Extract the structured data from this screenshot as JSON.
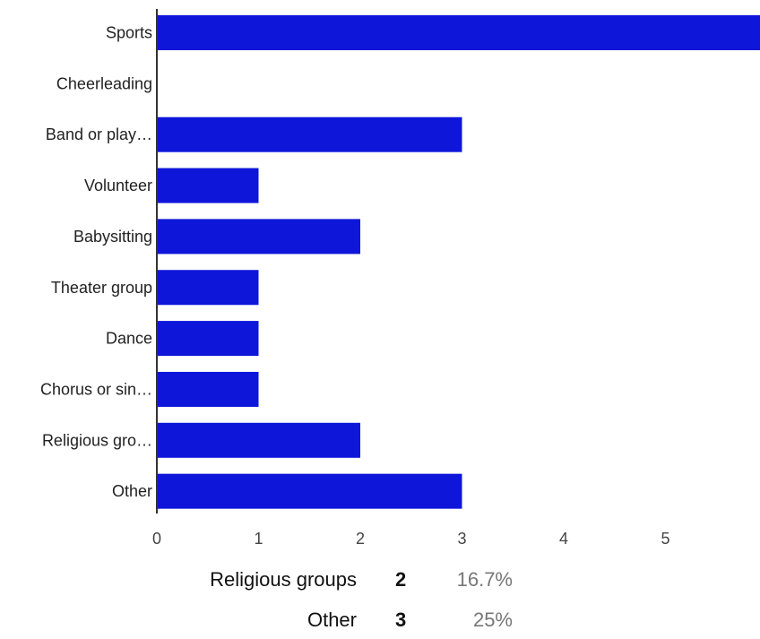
{
  "chart_data": {
    "type": "bar",
    "orientation": "horizontal",
    "categories": [
      "Sports",
      "Cheerleading",
      "Band or play…",
      "Volunteer",
      "Babysitting",
      "Theater group",
      "Dance",
      "Chorus or sin…",
      "Religious gro…",
      "Other"
    ],
    "values": [
      6,
      0,
      3,
      1,
      2,
      1,
      1,
      1,
      2,
      3
    ],
    "xlim": [
      0,
      5.93
    ],
    "xticks": [
      0,
      1,
      2,
      3,
      4,
      5
    ],
    "grid": false,
    "bar_color": "#0d16d9"
  },
  "summary": [
    {
      "label": "Religious groups",
      "count": "2",
      "percent": "16.7%"
    },
    {
      "label": "Other",
      "count": "3",
      "percent": "25%"
    }
  ]
}
